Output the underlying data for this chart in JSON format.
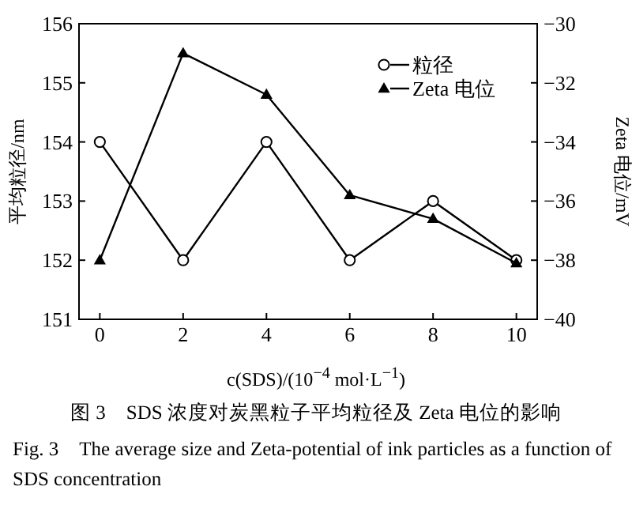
{
  "chart_data": {
    "type": "line",
    "xlabel": "c(SDS)/(10$^{−4}$ mol·L$^{−1}$)",
    "ylabel": "平均粒径/nm",
    "y2label": "Zeta 电位/mV",
    "x": [
      0,
      2,
      4,
      6,
      8,
      10
    ],
    "series": [
      {
        "name": "粒径",
        "color": "#000000",
        "marker": "circle",
        "values": [
          154,
          152,
          154,
          152,
          153,
          152
        ]
      },
      {
        "name": "Zeta 电位",
        "color": "#000000",
        "marker": "triangle",
        "axis": "y2",
        "values": [
          -38,
          -31,
          -32.4,
          -35.8,
          -36.6,
          -38.1
        ]
      }
    ],
    "xlim": [
      -0.5,
      10.5
    ],
    "xticks": [
      0,
      2,
      4,
      6,
      8,
      10
    ],
    "ylim": [
      151,
      156
    ],
    "yticks": [
      151,
      152,
      153,
      154,
      155,
      156
    ],
    "y2lim": [
      -40,
      -30
    ],
    "y2ticks": [
      -40,
      -38,
      -36,
      -34,
      -32,
      -30
    ],
    "legend": "top right",
    "grid": false,
    "annotations": [
      "图 3　SDS 浓度对炭黑粒子平均粒径及 Zeta 电位的影响",
      "Fig. 3　The average size and Zeta-potential of ink particles as a function of SDS concentration"
    ]
  }
}
